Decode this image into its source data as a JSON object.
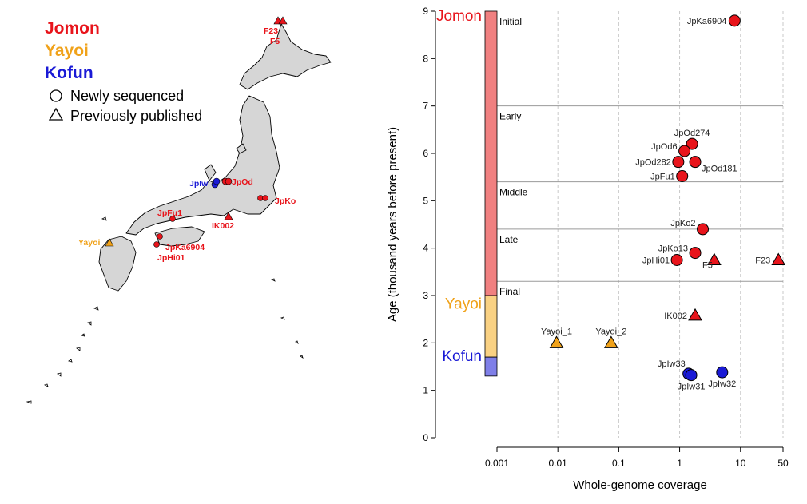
{
  "legend": {
    "periods": [
      {
        "name": "Jomon",
        "color": "#e8141b"
      },
      {
        "name": "Yayoi",
        "color": "#f0a21a"
      },
      {
        "name": "Kofun",
        "color": "#1a1ad6"
      }
    ],
    "shapes": [
      {
        "shape": "circle",
        "label": "Newly sequenced"
      },
      {
        "shape": "triangle",
        "label": "Previously published"
      }
    ]
  },
  "map": {
    "labels": [
      {
        "text": "F23",
        "period": "Jomon"
      },
      {
        "text": "F5",
        "period": "Jomon"
      },
      {
        "text": "JpIw",
        "period": "Kofun"
      },
      {
        "text": "JpOd",
        "period": "Jomon"
      },
      {
        "text": "JpKo",
        "period": "Jomon"
      },
      {
        "text": "JpFu1",
        "period": "Jomon"
      },
      {
        "text": "IK002",
        "period": "Jomon"
      },
      {
        "text": "Yayoi",
        "period": "Yayoi"
      },
      {
        "text": "JpKa6904",
        "period": "Jomon"
      },
      {
        "text": "JpHi01",
        "period": "Jomon"
      }
    ]
  },
  "chart_data": {
    "type": "scatter",
    "xlabel": "Whole-genome coverage",
    "ylabel": "Age (thousand years before present)",
    "x_scale": "log",
    "xlim": [
      0.001,
      50
    ],
    "ylim": [
      0,
      9
    ],
    "x_ticks": [
      "0.001",
      "0.01",
      "0.1",
      "1",
      "10",
      "50"
    ],
    "x_tick_values": [
      0.001,
      0.01,
      0.1,
      1,
      10,
      50
    ],
    "y_ticks": [
      0,
      1,
      2,
      3,
      4,
      5,
      6,
      7,
      8,
      9
    ],
    "vertical_gridlines": "dashed",
    "period_bar": [
      {
        "name": "Jomon",
        "from": 3.0,
        "to": 9.0,
        "color": "#f08080"
      },
      {
        "name": "Yayoi",
        "from": 1.7,
        "to": 3.0,
        "color": "#f9d183"
      },
      {
        "name": "Kofun",
        "from": 1.3,
        "to": 1.7,
        "color": "#7f7fe8"
      }
    ],
    "subperiods": [
      {
        "name": "Initial",
        "top": 9.0
      },
      {
        "name": "Early",
        "top": 7.0
      },
      {
        "name": "Middle",
        "top": 5.4
      },
      {
        "name": "Late",
        "top": 4.4
      },
      {
        "name": "Final",
        "top": 3.3
      }
    ],
    "points": [
      {
        "label": "JpKa6904",
        "x": 8.0,
        "y": 8.8,
        "period": "Jomon",
        "shape": "circle"
      },
      {
        "label": "JpOd274",
        "x": 1.6,
        "y": 6.2,
        "period": "Jomon",
        "shape": "circle"
      },
      {
        "label": "JpOd6",
        "x": 1.2,
        "y": 6.05,
        "period": "Jomon",
        "shape": "circle"
      },
      {
        "label": "JpOd282",
        "x": 0.95,
        "y": 5.82,
        "period": "Jomon",
        "shape": "circle"
      },
      {
        "label": "JpOd181",
        "x": 1.8,
        "y": 5.82,
        "period": "Jomon",
        "shape": "circle"
      },
      {
        "label": "JpFu1",
        "x": 1.1,
        "y": 5.52,
        "period": "Jomon",
        "shape": "circle"
      },
      {
        "label": "JpKo2",
        "x": 2.4,
        "y": 4.4,
        "period": "Jomon",
        "shape": "circle"
      },
      {
        "label": "JpKo13",
        "x": 1.8,
        "y": 3.9,
        "period": "Jomon",
        "shape": "circle"
      },
      {
        "label": "JpHi01",
        "x": 0.9,
        "y": 3.75,
        "period": "Jomon",
        "shape": "circle"
      },
      {
        "label": "F5",
        "x": 3.7,
        "y": 3.75,
        "period": "Jomon",
        "shape": "triangle"
      },
      {
        "label": "F23",
        "x": 42,
        "y": 3.75,
        "period": "Jomon",
        "shape": "triangle"
      },
      {
        "label": "IK002",
        "x": 1.8,
        "y": 2.58,
        "period": "Jomon",
        "shape": "triangle"
      },
      {
        "label": "Yayoi_1",
        "x": 0.0095,
        "y": 2.0,
        "period": "Yayoi",
        "shape": "triangle"
      },
      {
        "label": "Yayoi_2",
        "x": 0.075,
        "y": 2.0,
        "period": "Yayoi",
        "shape": "triangle"
      },
      {
        "label": "JpIw33",
        "x": 1.4,
        "y": 1.35,
        "period": "Kofun",
        "shape": "circle"
      },
      {
        "label": "JpIw31",
        "x": 1.55,
        "y": 1.32,
        "period": "Kofun",
        "shape": "circle"
      },
      {
        "label": "JpIw32",
        "x": 5.0,
        "y": 1.38,
        "period": "Kofun",
        "shape": "circle"
      }
    ]
  }
}
